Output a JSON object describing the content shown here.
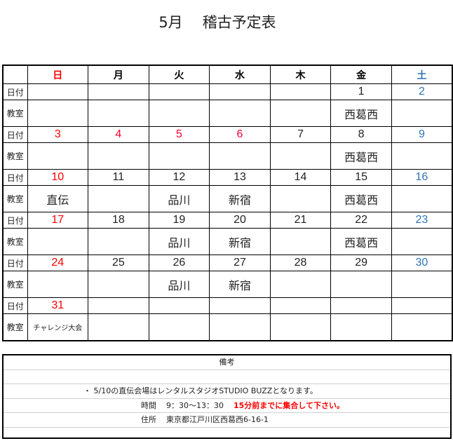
{
  "title": {
    "month": "5月",
    "text": "稽古予定表"
  },
  "calendar": {
    "weekdays": [
      "日",
      "月",
      "火",
      "水",
      "木",
      "金",
      "土"
    ],
    "date_label": "日付",
    "room_label": "教室",
    "colors": {
      "sunday": "#ff0000",
      "holiday": "#ff0033",
      "saturday": "#2e75b6",
      "weekday": "#222222"
    },
    "holidays": [
      "3",
      "4",
      "5",
      "6"
    ],
    "weeks": [
      {
        "dates": [
          "",
          "",
          "",
          "",
          "",
          "1",
          "2"
        ],
        "rooms": [
          "",
          "",
          "",
          "",
          "",
          "西葛西",
          ""
        ]
      },
      {
        "dates": [
          "3",
          "4",
          "5",
          "6",
          "7",
          "8",
          "9"
        ],
        "rooms": [
          "",
          "",
          "",
          "",
          "",
          "西葛西",
          ""
        ]
      },
      {
        "dates": [
          "10",
          "11",
          "12",
          "13",
          "14",
          "15",
          "16"
        ],
        "rooms": [
          "直伝",
          "",
          "品川",
          "新宿",
          "",
          "西葛西",
          ""
        ]
      },
      {
        "dates": [
          "17",
          "18",
          "19",
          "20",
          "21",
          "22",
          "23"
        ],
        "rooms": [
          "",
          "",
          "品川",
          "新宿",
          "",
          "西葛西",
          ""
        ]
      },
      {
        "dates": [
          "24",
          "25",
          "26",
          "27",
          "28",
          "29",
          "30"
        ],
        "rooms": [
          "",
          "",
          "品川",
          "新宿",
          "",
          "",
          ""
        ]
      },
      {
        "dates": [
          "31",
          "",
          "",
          "",
          "",
          "",
          ""
        ],
        "rooms": [
          "チャレンジ大会",
          "",
          "",
          "",
          "",
          "",
          ""
        ]
      }
    ]
  },
  "notes": {
    "heading": "備考",
    "line1": "・ 5/10の直伝会場はレンタルスタジオSTUDIO BUZZとなります。",
    "time_label": "時間",
    "time_value": "9：30〜13：30",
    "time_note": "15分前までに集合して下さい。",
    "address_label": "住所",
    "address_value": "東京都江戸川区西葛西6-16-1"
  }
}
